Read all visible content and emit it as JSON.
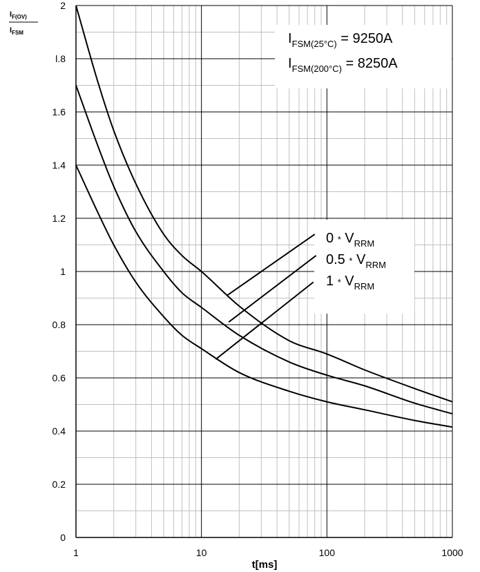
{
  "chart_data": {
    "type": "line",
    "x_scale": "log",
    "xlim": [
      1,
      1000
    ],
    "ylim": [
      0,
      2
    ],
    "grid": true,
    "xlabel": "t[ms]",
    "ylabel": {
      "numerator_main": "I",
      "numerator_sub": "F(OV)",
      "denominator_main": "I",
      "denominator_sub": "FSM"
    },
    "x_ticks": [
      {
        "value": 1,
        "label": "1"
      },
      {
        "value": 10,
        "label": "10"
      },
      {
        "value": 100,
        "label": "100"
      },
      {
        "value": 1000,
        "label": "1000"
      }
    ],
    "y_ticks": [
      {
        "value": 0,
        "label": "0"
      },
      {
        "value": 0.2,
        "label": "0.2"
      },
      {
        "value": 0.4,
        "label": "0.4"
      },
      {
        "value": 0.6,
        "label": "0.6"
      },
      {
        "value": 0.8,
        "label": "0.8"
      },
      {
        "value": 1,
        "label": "1"
      },
      {
        "value": 1.2,
        "label": "1.2"
      },
      {
        "value": 1.4,
        "label": "1.4"
      },
      {
        "value": 1.6,
        "label": "1.6"
      },
      {
        "value": 1.8,
        "label": "l.8"
      },
      {
        "value": 2,
        "label": "2"
      }
    ],
    "series": [
      {
        "name": "0 * VRRM",
        "x": [
          1,
          1.5,
          2,
          3,
          5,
          7,
          10,
          20,
          50,
          100,
          200,
          500,
          1000
        ],
        "y": [
          2.0,
          1.71,
          1.53,
          1.33,
          1.14,
          1.06,
          1.0,
          0.87,
          0.74,
          0.69,
          0.63,
          0.56,
          0.51
        ]
      },
      {
        "name": "0.5 * VRRM",
        "x": [
          1,
          1.5,
          2,
          3,
          5,
          7,
          10,
          20,
          50,
          100,
          200,
          500,
          1000
        ],
        "y": [
          1.7,
          1.47,
          1.32,
          1.15,
          1.0,
          0.92,
          0.865,
          0.76,
          0.66,
          0.61,
          0.57,
          0.505,
          0.465
        ]
      },
      {
        "name": "1 * VRRM",
        "x": [
          1,
          1.5,
          2,
          3,
          5,
          7,
          10,
          20,
          50,
          100,
          200,
          500,
          1000
        ],
        "y": [
          1.4,
          1.22,
          1.1,
          0.96,
          0.83,
          0.76,
          0.71,
          0.62,
          0.55,
          0.51,
          0.48,
          0.44,
          0.415
        ]
      }
    ],
    "curve_labels": [
      {
        "prefix": "0",
        "mul": "*",
        "main": "V",
        "sub": "RRM",
        "leader": {
          "from": [
            16,
            0.91
          ],
          "to": [
            80,
            1.14
          ]
        }
      },
      {
        "prefix": "0.5",
        "mul": "*",
        "main": "V",
        "sub": "RRM",
        "leader": {
          "from": [
            16.5,
            0.81
          ],
          "to": [
            82,
            1.06
          ]
        }
      },
      {
        "prefix": "1",
        "mul": "*",
        "main": "V",
        "sub": "RRM",
        "leader": {
          "from": [
            13,
            0.67
          ],
          "to": [
            78,
            0.96
          ]
        }
      }
    ],
    "annotations": [
      {
        "main": "I",
        "sub": "FSM(25°C)",
        "value": "= 9250A"
      },
      {
        "main": "I",
        "sub": "FSM(200°C)",
        "value": "= 8250A"
      }
    ],
    "colors": {
      "line": "#000000",
      "grid_major": "#000000",
      "grid_minor": "#bfbfbf",
      "background": "#ffffff"
    }
  }
}
